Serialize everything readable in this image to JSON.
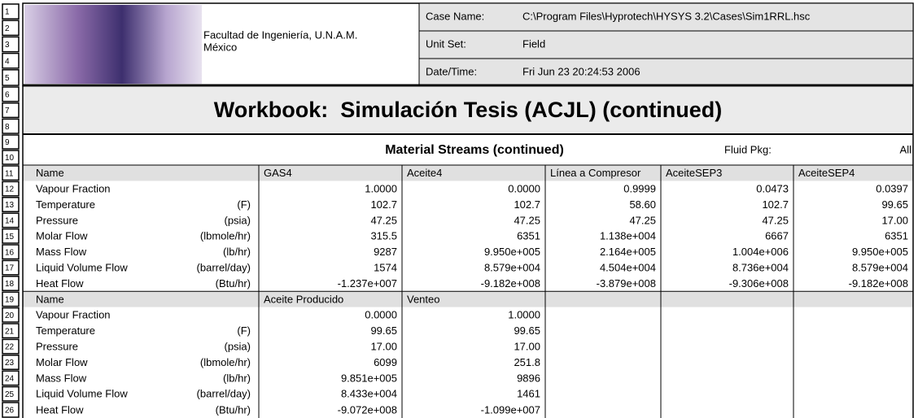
{
  "row_numbers": [
    "1",
    "2",
    "3",
    "4",
    "5",
    "6",
    "7",
    "8",
    "9",
    "10",
    "11",
    "12",
    "13",
    "14",
    "15",
    "16",
    "17",
    "18",
    "19",
    "20",
    "21",
    "22",
    "23",
    "24",
    "25",
    "26"
  ],
  "header": {
    "organization": [
      "Facultad de Ingeniería, U.N.A.M.",
      "México"
    ],
    "info": [
      {
        "label": "Case Name:",
        "value": "C:\\Program Files\\Hyprotech\\HYSYS 3.2\\Cases\\Sim1RRL.hsc"
      },
      {
        "label": "Unit Set:",
        "value": "Field"
      },
      {
        "label": "Date/Time:",
        "value": "Fri Jun 23 20:24:53 2006"
      }
    ]
  },
  "title": "Workbook:  Simulación Tesis (ACJL) (continued)",
  "section": {
    "title": "Material Streams (continued)",
    "fluid_pkg_label": "Fluid Pkg:",
    "fluid_pkg_value": "All"
  },
  "tables": [
    {
      "header": [
        "Name",
        "GAS4",
        "Aceite4",
        "Línea a Compresor",
        "AceiteSEP3",
        "AceiteSEP4"
      ],
      "rows": [
        {
          "label": "Vapour Fraction",
          "values": [
            "1.0000",
            "0.0000",
            "0.9999",
            "0.0473",
            "0.0397"
          ]
        },
        {
          "label": "Temperature",
          "unit": "(F)",
          "values": [
            "102.7",
            "102.7",
            "58.60",
            "102.7",
            "99.65"
          ]
        },
        {
          "label": "Pressure",
          "unit": "(psia)",
          "values": [
            "47.25",
            "47.25",
            "47.25",
            "47.25",
            "17.00"
          ]
        },
        {
          "label": "Molar Flow",
          "unit": "(lbmole/hr)",
          "values": [
            "315.5",
            "6351",
            "1.138e+004",
            "6667",
            "6351"
          ]
        },
        {
          "label": "Mass Flow",
          "unit": "(lb/hr)",
          "values": [
            "9287",
            "9.950e+005",
            "2.164e+005",
            "1.004e+006",
            "9.950e+005"
          ]
        },
        {
          "label": "Liquid Volume Flow",
          "unit": "(barrel/day)",
          "values": [
            "1574",
            "8.579e+004",
            "4.504e+004",
            "8.736e+004",
            "8.579e+004"
          ]
        },
        {
          "label": "Heat Flow",
          "unit": "(Btu/hr)",
          "values": [
            "-1.237e+007",
            "-9.182e+008",
            "-3.879e+008",
            "-9.306e+008",
            "-9.182e+008"
          ]
        }
      ]
    },
    {
      "header": [
        "Name",
        "Aceite Producido",
        "Venteo"
      ],
      "rows": [
        {
          "label": "Vapour Fraction",
          "values": [
            "0.0000",
            "1.0000"
          ]
        },
        {
          "label": "Temperature",
          "unit": "(F)",
          "values": [
            "99.65",
            "99.65"
          ]
        },
        {
          "label": "Pressure",
          "unit": "(psia)",
          "values": [
            "17.00",
            "17.00"
          ]
        },
        {
          "label": "Molar Flow",
          "unit": "(lbmole/hr)",
          "values": [
            "6099",
            "251.8"
          ]
        },
        {
          "label": "Mass Flow",
          "unit": "(lb/hr)",
          "values": [
            "9.851e+005",
            "9896"
          ]
        },
        {
          "label": "Liquid Volume Flow",
          "unit": "(barrel/day)",
          "values": [
            "8.433e+004",
            "1461"
          ]
        },
        {
          "label": "Heat Flow",
          "unit": "(Btu/hr)",
          "values": [
            "-9.072e+008",
            "-1.099e+007"
          ]
        }
      ]
    }
  ]
}
